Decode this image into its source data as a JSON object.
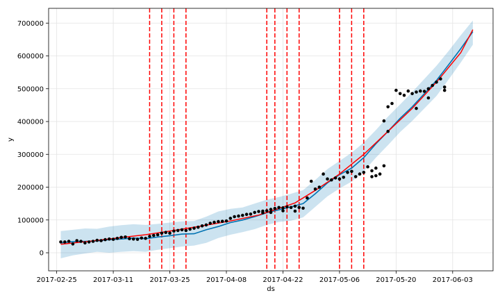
{
  "chart_data": {
    "type": "line",
    "title": "",
    "xlabel": "ds",
    "ylabel": "y",
    "x_range": [
      "2017-02-23",
      "2017-06-13"
    ],
    "ylim": [
      -55000,
      745000
    ],
    "grid": true,
    "legend": "none",
    "x_ticks": [
      "2017-02-25",
      "2017-03-11",
      "2017-03-25",
      "2017-04-08",
      "2017-04-22",
      "2017-05-06",
      "2017-05-20",
      "2017-06-03"
    ],
    "y_ticks": [
      0,
      100000,
      200000,
      300000,
      400000,
      500000,
      600000,
      700000
    ],
    "y_tick_labels": [
      "0",
      "100000",
      "200000",
      "300000",
      "400000",
      "500000",
      "600000",
      "700000"
    ],
    "colors": {
      "observed": "#000000",
      "forecast": "#0072B2",
      "interval": "#0072B2",
      "trend": "#ff0000",
      "changepoint": "#ff0000",
      "grid": "#e3e3e3"
    },
    "changepoints": [
      "2017-03-20",
      "2017-03-23",
      "2017-03-26",
      "2017-03-29",
      "2017-04-18",
      "2017-04-20",
      "2017-04-23",
      "2017-04-26",
      "2017-05-06",
      "2017-05-09",
      "2017-05-12"
    ],
    "series": [
      {
        "role": "observed",
        "x": [
          "2017-02-26",
          "2017-02-27",
          "2017-02-28",
          "2017-03-01",
          "2017-03-02",
          "2017-03-03",
          "2017-03-04",
          "2017-03-05",
          "2017-03-06",
          "2017-03-07",
          "2017-03-08",
          "2017-03-09",
          "2017-03-10",
          "2017-03-11",
          "2017-03-12",
          "2017-03-13",
          "2017-03-14",
          "2017-03-15",
          "2017-03-16",
          "2017-03-17",
          "2017-03-18",
          "2017-03-19",
          "2017-03-20",
          "2017-03-21",
          "2017-03-22",
          "2017-03-23",
          "2017-03-24",
          "2017-03-25",
          "2017-03-26",
          "2017-03-27",
          "2017-03-28",
          "2017-03-29",
          "2017-03-30",
          "2017-03-31",
          "2017-04-01",
          "2017-04-02",
          "2017-04-03",
          "2017-04-04",
          "2017-04-05",
          "2017-04-06",
          "2017-04-07",
          "2017-04-08",
          "2017-04-09",
          "2017-04-10",
          "2017-04-11",
          "2017-04-12",
          "2017-04-13",
          "2017-04-14",
          "2017-04-15",
          "2017-04-16",
          "2017-04-17",
          "2017-04-18",
          "2017-04-19",
          "2017-04-20",
          "2017-04-21",
          "2017-04-22",
          "2017-04-23",
          "2017-04-24",
          "2017-04-25",
          "2017-04-26",
          "2017-04-27",
          "2017-04-28",
          "2017-04-29",
          "2017-04-30",
          "2017-05-01",
          "2017-05-02",
          "2017-05-03",
          "2017-05-04",
          "2017-05-05",
          "2017-05-06",
          "2017-05-07",
          "2017-05-08",
          "2017-05-09",
          "2017-05-10",
          "2017-05-11",
          "2017-05-12",
          "2017-05-13",
          "2017-05-14",
          "2017-05-15",
          "2017-05-16",
          "2017-05-17",
          "2017-05-18",
          "2017-05-19",
          "2017-05-20",
          "2017-05-21",
          "2017-05-22",
          "2017-05-23",
          "2017-05-24",
          "2017-05-25",
          "2017-05-26",
          "2017-05-27",
          "2017-05-28",
          "2017-05-29",
          "2017-05-30",
          "2017-05-31",
          "2017-06-01"
        ],
        "y": [
          33000,
          33000,
          35000,
          27000,
          37000,
          35000,
          30000,
          33000,
          35000,
          38000,
          37000,
          40000,
          42000,
          41000,
          44000,
          47000,
          48000,
          43000,
          42000,
          41000,
          45000,
          44000,
          50000,
          53000,
          55000,
          60000,
          62000,
          60000,
          66000,
          68000,
          70000,
          68000,
          72000,
          75000,
          78000,
          82000,
          85000,
          90000,
          93000,
          95000,
          96000,
          97000,
          105000,
          110000,
          112000,
          114000,
          117000,
          118000,
          123000,
          126000,
          127000,
          128000,
          132000,
          135000,
          138000,
          137000,
          140000,
          138000,
          142000,
          138000,
          136000,
          167000,
          218000,
          194000,
          200000,
          240000,
          225000,
          222000,
          228000,
          225000,
          230000,
          245000,
          248000,
          232000,
          240000,
          245000,
          262000,
          250000,
          235000,
          240000,
          265000,
          370000,
          455000,
          495000,
          485000,
          480000,
          493000,
          485000,
          490000,
          493000,
          492000,
          500000,
          510000,
          520000,
          530000,
          505000
        ],
        "y_extra": [
          {
            "x": "2017-04-17",
            "y": 122000
          },
          {
            "x": "2017-04-19",
            "y": 123000
          },
          {
            "x": "2017-04-22",
            "y": 128000
          },
          {
            "x": "2017-04-25",
            "y": 127000
          },
          {
            "x": "2017-05-14",
            "y": 232000
          },
          {
            "x": "2017-05-15",
            "y": 258000
          },
          {
            "x": "2017-05-17",
            "y": 402000
          },
          {
            "x": "2017-05-18",
            "y": 445000
          },
          {
            "x": "2017-05-25",
            "y": 440000
          },
          {
            "x": "2017-05-28",
            "y": 472000
          },
          {
            "x": "2017-06-01",
            "y": 495000
          }
        ]
      },
      {
        "role": "forecast",
        "x": [
          "2017-02-26",
          "2017-03-01",
          "2017-03-04",
          "2017-03-07",
          "2017-03-10",
          "2017-03-13",
          "2017-03-16",
          "2017-03-19",
          "2017-03-22",
          "2017-03-25",
          "2017-03-28",
          "2017-03-31",
          "2017-04-03",
          "2017-04-06",
          "2017-04-09",
          "2017-04-12",
          "2017-04-15",
          "2017-04-18",
          "2017-04-21",
          "2017-04-24",
          "2017-04-27",
          "2017-04-30",
          "2017-05-03",
          "2017-05-06",
          "2017-05-09",
          "2017-05-12",
          "2017-05-15",
          "2017-05-18",
          "2017-05-21",
          "2017-05-24",
          "2017-05-27",
          "2017-05-30",
          "2017-06-02",
          "2017-06-05",
          "2017-06-08"
        ],
        "y": [
          30000,
          34000,
          35000,
          36000,
          40000,
          42000,
          45000,
          43000,
          48000,
          52000,
          57000,
          58000,
          70000,
          80000,
          92000,
          100000,
          110000,
          122000,
          131000,
          140000,
          150000,
          180000,
          213000,
          238000,
          258000,
          290000,
          332000,
          370000,
          410000,
          445000,
          485000,
          525000,
          573000,
          622000,
          674000
        ]
      },
      {
        "role": "interval_upper",
        "x": [
          "2017-02-26",
          "2017-03-01",
          "2017-03-04",
          "2017-03-07",
          "2017-03-10",
          "2017-03-13",
          "2017-03-16",
          "2017-03-19",
          "2017-03-22",
          "2017-03-25",
          "2017-03-28",
          "2017-03-31",
          "2017-04-03",
          "2017-04-06",
          "2017-04-09",
          "2017-04-12",
          "2017-04-15",
          "2017-04-18",
          "2017-04-21",
          "2017-04-24",
          "2017-04-27",
          "2017-04-30",
          "2017-05-03",
          "2017-05-06",
          "2017-05-09",
          "2017-05-12",
          "2017-05-15",
          "2017-05-18",
          "2017-05-21",
          "2017-05-24",
          "2017-05-27",
          "2017-05-30",
          "2017-06-02",
          "2017-06-05",
          "2017-06-08"
        ],
        "y": [
          66000,
          70000,
          74000,
          73000,
          80000,
          84000,
          87000,
          85000,
          88000,
          92000,
          96000,
          97000,
          110000,
          126000,
          134000,
          138000,
          150000,
          162000,
          170000,
          180000,
          191000,
          222000,
          255000,
          280000,
          305000,
          336000,
          374000,
          415000,
          452000,
          490000,
          530000,
          570000,
          615000,
          663000,
          708000
        ]
      },
      {
        "role": "interval_lower",
        "x": [
          "2017-02-26",
          "2017-03-01",
          "2017-03-04",
          "2017-03-07",
          "2017-03-10",
          "2017-03-13",
          "2017-03-16",
          "2017-03-19",
          "2017-03-22",
          "2017-03-25",
          "2017-03-28",
          "2017-03-31",
          "2017-04-03",
          "2017-04-06",
          "2017-04-09",
          "2017-04-12",
          "2017-04-15",
          "2017-04-18",
          "2017-04-21",
          "2017-04-24",
          "2017-04-27",
          "2017-04-30",
          "2017-05-03",
          "2017-05-06",
          "2017-05-09",
          "2017-05-12",
          "2017-05-15",
          "2017-05-18",
          "2017-05-21",
          "2017-05-24",
          "2017-05-27",
          "2017-05-30",
          "2017-06-02",
          "2017-06-05",
          "2017-06-08"
        ],
        "y": [
          -17000,
          -8000,
          -2000,
          3000,
          0,
          3000,
          5000,
          3000,
          9000,
          14000,
          19000,
          22000,
          30000,
          45000,
          55000,
          63000,
          72000,
          85000,
          94000,
          98000,
          108000,
          140000,
          172000,
          196000,
          217000,
          248000,
          290000,
          328000,
          368000,
          402000,
          440000,
          478000,
          528000,
          580000,
          634000
        ]
      },
      {
        "role": "trend",
        "x": [
          "2017-02-26",
          "2017-03-05",
          "2017-03-12",
          "2017-03-19",
          "2017-03-26",
          "2017-04-02",
          "2017-04-09",
          "2017-04-16",
          "2017-04-21",
          "2017-04-25",
          "2017-04-30",
          "2017-05-06",
          "2017-05-12",
          "2017-05-18",
          "2017-05-24",
          "2017-05-30",
          "2017-06-05",
          "2017-06-08"
        ],
        "y": [
          26000,
          35000,
          45000,
          55000,
          68000,
          82000,
          97000,
          115000,
          135000,
          152000,
          190000,
          240000,
          300000,
          370000,
          440000,
          520000,
          610000,
          680000
        ]
      }
    ]
  }
}
